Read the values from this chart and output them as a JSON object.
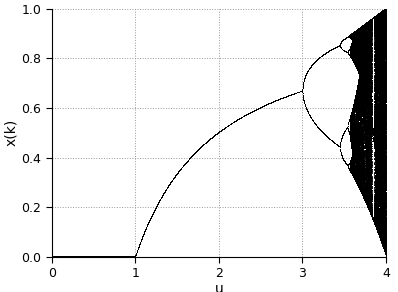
{
  "title": "",
  "xlabel": "u",
  "ylabel": "x(k)",
  "xlim": [
    0,
    4
  ],
  "ylim": [
    0,
    1
  ],
  "xticks": [
    0,
    1,
    2,
    3,
    4
  ],
  "yticks": [
    0,
    0.2,
    0.4,
    0.6,
    0.8,
    1.0
  ],
  "dot_color": "#000000",
  "background_color": "#ffffff",
  "grid_color": "#999999",
  "n_iterations": 800,
  "n_last": 300,
  "mu_steps": 3000,
  "mu_min": 0.0,
  "mu_max": 4.0,
  "figsize": [
    3.98,
    2.92
  ],
  "dpi": 100
}
